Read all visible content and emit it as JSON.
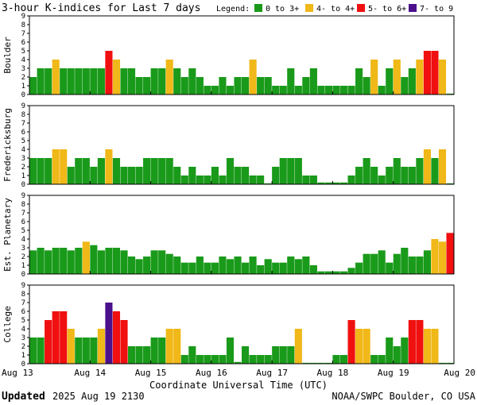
{
  "chart_data": {
    "type": "bar",
    "title": "3-hour K-indices for Last 7 days",
    "legend": {
      "title": "Legend:",
      "position": "top-right",
      "items": [
        {
          "label": "0 to 3+",
          "color": "#1a9a1a"
        },
        {
          "label": "4- to 4+",
          "color": "#f0b818"
        },
        {
          "label": "5- to 6+",
          "color": "#f01010"
        },
        {
          "label": "7- to 9",
          "color": "#4b108c"
        }
      ]
    },
    "xlabel": "Coordinate Universal Time (UTC)",
    "x_ticks": [
      "Aug 13",
      "Aug 14",
      "Aug 15",
      "Aug 16",
      "Aug 17",
      "Aug 18",
      "Aug 19",
      "Aug 20"
    ],
    "ylim": [
      0,
      9
    ],
    "y_ticks": [
      "0",
      "1",
      "2",
      "3",
      "4",
      "5",
      "6",
      "7",
      "8",
      "9"
    ],
    "intervals_per_day": 8,
    "grid": false,
    "panels": [
      {
        "name": "Boulder",
        "values": [
          2,
          3,
          3,
          4,
          3,
          3,
          3,
          3,
          3,
          3,
          5,
          4,
          3,
          3,
          2,
          2,
          3,
          3,
          4,
          3,
          2,
          3,
          2,
          1,
          1,
          2,
          1,
          2,
          2,
          4,
          2,
          2,
          1,
          1,
          3,
          1,
          2,
          3,
          1,
          1,
          1,
          1,
          1,
          3,
          2,
          4,
          1,
          3,
          4,
          2,
          3,
          4,
          5,
          5,
          4,
          0.1
        ]
      },
      {
        "name": "Fredericksburg",
        "values": [
          3,
          3,
          3,
          4,
          4,
          2,
          3,
          3,
          2,
          3,
          4,
          3,
          2,
          2,
          2,
          3,
          3,
          3,
          3,
          2,
          1,
          2,
          1,
          1,
          2,
          1,
          3,
          2,
          2,
          1,
          1,
          0.1,
          2,
          3,
          3,
          3,
          1,
          1,
          0.2,
          0.2,
          0.2,
          0.2,
          1,
          2,
          3,
          2,
          1,
          2,
          3,
          2,
          2,
          3,
          4,
          3,
          4,
          0.1
        ]
      },
      {
        "name": "Est. Planetary",
        "values": [
          2.7,
          3,
          2.7,
          3,
          3,
          2.7,
          3,
          3.7,
          3.3,
          2.7,
          3,
          3,
          2.7,
          2,
          1.7,
          2,
          2.7,
          2.7,
          2.3,
          2,
          1.3,
          1.3,
          2,
          1.3,
          1.3,
          2,
          1.7,
          2,
          1.3,
          2,
          1,
          1.7,
          1.3,
          1.3,
          2,
          1.7,
          2,
          1,
          0.3,
          0.3,
          0.3,
          0.3,
          0.7,
          1.3,
          2.3,
          2.3,
          2.7,
          1.3,
          2.3,
          3,
          2,
          2,
          2.7,
          4,
          3.7,
          4.7
        ]
      },
      {
        "name": "College",
        "values": [
          3,
          3,
          5,
          6,
          6,
          4,
          3,
          3,
          3,
          4,
          7,
          6,
          5,
          2,
          2,
          2,
          3,
          3,
          4,
          4,
          1,
          2,
          1,
          1,
          1,
          1,
          3,
          0.2,
          2,
          1,
          1,
          1,
          2,
          2,
          2,
          4,
          0.1,
          0.1,
          0.1,
          0.1,
          1,
          1,
          5,
          4,
          4,
          1,
          1,
          3,
          2,
          3,
          5,
          5,
          4,
          4,
          0.1,
          0.1
        ]
      }
    ]
  },
  "footer": {
    "updated_label": "Updated",
    "updated_value": "2025 Aug 19 2130",
    "credit": "NOAA/SWPC Boulder, CO USA"
  }
}
